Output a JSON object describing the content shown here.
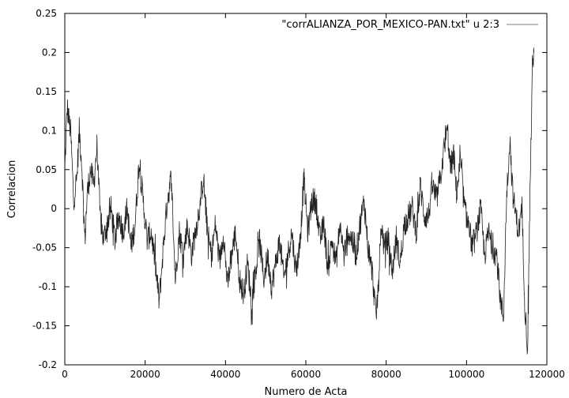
{
  "chart_data": {
    "type": "line",
    "title": "",
    "xlabel": "Numero de Acta",
    "ylabel": "Correlacion",
    "xlim": [
      0,
      120000
    ],
    "ylim": [
      -0.2,
      0.25
    ],
    "xticks": [
      0,
      20000,
      40000,
      60000,
      80000,
      100000,
      120000
    ],
    "xtick_labels": [
      "0",
      "20000",
      "40000",
      "60000",
      "80000",
      "100000",
      "120000"
    ],
    "yticks": [
      -0.2,
      -0.15,
      -0.1,
      -0.05,
      0,
      0.05,
      0.1,
      0.15,
      0.2,
      0.25
    ],
    "ytick_labels": [
      "-0.2",
      "-0.15",
      "-0.1",
      "-0.05",
      "0",
      "0.05",
      "0.1",
      "0.15",
      "0.2",
      "0.25"
    ],
    "grid": false,
    "legend": "top-right",
    "series": [
      {
        "name": "\"corrALIANZA_POR_MEXICO-PAN.txt\" u 2:3",
        "color": "#222222",
        "legend_color": "#999999",
        "x": [
          0,
          600,
          1500,
          2200,
          3000,
          3600,
          4200,
          5000,
          5600,
          6400,
          7200,
          8000,
          8800,
          9600,
          10500,
          11500,
          12500,
          13500,
          14500,
          15500,
          16500,
          17500,
          18500,
          19500,
          20500,
          21500,
          22500,
          23500,
          24500,
          25500,
          26500,
          27500,
          28500,
          29500,
          30500,
          31500,
          32500,
          33500,
          34500,
          35500,
          36500,
          37500,
          38500,
          39500,
          40500,
          41500,
          42500,
          43500,
          44500,
          45500,
          46500,
          47500,
          48500,
          49500,
          50500,
          51500,
          52500,
          53500,
          54500,
          55500,
          56500,
          57500,
          58500,
          59500,
          60500,
          61500,
          62500,
          63500,
          64500,
          65500,
          66500,
          67500,
          68500,
          69500,
          70500,
          71500,
          72500,
          73500,
          74500,
          75500,
          76500,
          77500,
          78000,
          78800,
          79500,
          80500,
          81500,
          82500,
          83500,
          84500,
          85500,
          86500,
          87500,
          88500,
          89500,
          90500,
          91500,
          92500,
          93500,
          94500,
          95300,
          96000,
          96800,
          97500,
          98500,
          99500,
          100500,
          101500,
          102500,
          103500,
          104500,
          105500,
          106500,
          107500,
          108500,
          109200,
          110000,
          110800,
          111500,
          112300,
          113000,
          113800,
          114500,
          115200,
          115800,
          116400,
          116800
        ],
        "y": [
          0.05,
          0.13,
          0.095,
          0.01,
          0.04,
          0.1,
          0.06,
          -0.04,
          0.02,
          0.05,
          0.03,
          0.08,
          -0.01,
          -0.04,
          -0.02,
          0.0,
          -0.04,
          -0.01,
          -0.03,
          0.0,
          -0.05,
          -0.02,
          0.06,
          0.01,
          -0.04,
          -0.03,
          -0.07,
          -0.12,
          -0.05,
          0.01,
          0.04,
          -0.09,
          -0.03,
          -0.06,
          -0.02,
          -0.06,
          -0.03,
          0.0,
          0.04,
          -0.03,
          -0.06,
          -0.02,
          -0.07,
          -0.03,
          -0.1,
          -0.06,
          -0.03,
          -0.09,
          -0.11,
          -0.07,
          -0.12,
          -0.08,
          -0.04,
          -0.09,
          -0.06,
          -0.1,
          -0.07,
          -0.04,
          -0.09,
          -0.06,
          -0.03,
          -0.08,
          -0.05,
          0.04,
          -0.03,
          0.01,
          0.01,
          -0.04,
          -0.02,
          -0.08,
          -0.04,
          -0.07,
          -0.02,
          -0.06,
          -0.03,
          -0.04,
          -0.06,
          -0.02,
          0.01,
          -0.05,
          -0.08,
          -0.14,
          -0.1,
          -0.02,
          -0.05,
          -0.04,
          -0.08,
          -0.04,
          -0.07,
          -0.02,
          -0.01,
          0.0,
          -0.03,
          0.03,
          -0.01,
          -0.01,
          0.03,
          0.01,
          0.04,
          0.08,
          0.1,
          0.05,
          0.07,
          0.02,
          0.06,
          0.0,
          -0.02,
          -0.05,
          -0.03,
          0.0,
          -0.06,
          -0.03,
          -0.05,
          -0.06,
          -0.12,
          -0.14,
          0.02,
          0.09,
          0.02,
          -0.01,
          -0.03,
          0.0,
          -0.12,
          -0.18,
          0.02,
          0.18,
          0.2
        ]
      }
    ]
  }
}
